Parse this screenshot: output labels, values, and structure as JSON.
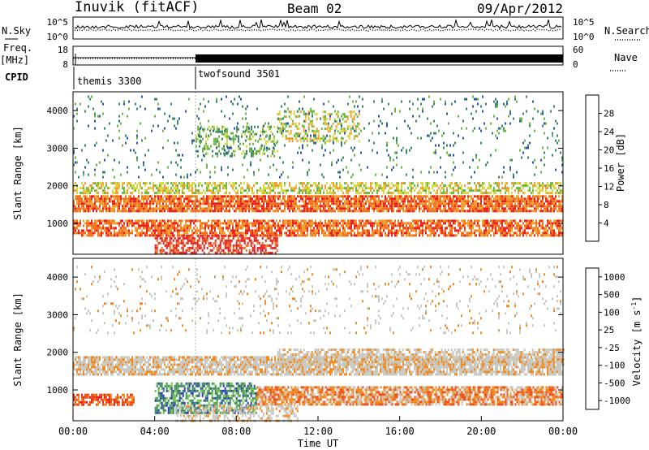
{
  "header": {
    "station": "Inuvik (fitACF)",
    "beam": "Beam 02",
    "date": "09/Apr/2012"
  },
  "side_labels": {
    "nsky": "N.Sky",
    "nsearch": "N.Search",
    "freq_line1": "Freq.",
    "freq_line2": "[MHz]",
    "nave": "Nave",
    "cpid": "CPID"
  },
  "cpid_programs": [
    {
      "name": "themis 3300",
      "start_hour": 0
    },
    {
      "name": "twofsound 3501",
      "start_hour": 6
    }
  ],
  "colors": {
    "power": [
      "#1e1ee6",
      "#2a5aa8",
      "#3a8a6a",
      "#6ab845",
      "#d8d840",
      "#f0a030",
      "#f07020",
      "#e82020"
    ],
    "velocity": [
      "#e82020",
      "#f05018",
      "#f08a20",
      "#c8c8c0",
      "#c8c8c0",
      "#6ac040",
      "#3a8a5a",
      "#2a40b0"
    ]
  },
  "chart_data": [
    {
      "type": "line",
      "panel": "N.Sky / N.Search",
      "ylabels": [
        "10^5",
        "10^0"
      ],
      "y2labels": [
        "10^5",
        "10^0"
      ],
      "x_range": [
        0,
        24
      ]
    },
    {
      "type": "line",
      "panel": "Freq / Nave",
      "ylim": [
        8,
        18
      ],
      "yticks": [
        "18",
        "8"
      ],
      "y2lim": [
        0,
        60
      ],
      "y2ticks": [
        "60",
        "0"
      ],
      "series": [
        {
          "name": "Freq.",
          "x": [
            0,
            6,
            6,
            24
          ],
          "y": [
            12,
            12,
            12,
            12
          ]
        }
      ]
    },
    {
      "type": "heatmap",
      "panel": "Power",
      "ylabel": "Slant Range [km]",
      "xlim": [
        0,
        24
      ],
      "ylim": [
        180,
        4500
      ],
      "yticks": [
        1000,
        2000,
        3000,
        4000
      ],
      "colorbar": {
        "label": "Power [dB]",
        "ticks": [
          4,
          8,
          12,
          16,
          20,
          24,
          28
        ]
      },
      "bands": [
        {
          "x": [
            0,
            24
          ],
          "range": [
            1300,
            1750
          ],
          "level": 6,
          "density": 0.85
        },
        {
          "x": [
            0,
            24
          ],
          "range": [
            650,
            1100
          ],
          "level": 6,
          "density": 0.75
        },
        {
          "x": [
            4,
            10
          ],
          "range": [
            200,
            700
          ],
          "level": 7,
          "density": 0.6
        },
        {
          "x": [
            0,
            24
          ],
          "range": [
            1800,
            2100
          ],
          "level": 4,
          "density": 0.55
        },
        {
          "x": [
            6,
            10
          ],
          "range": [
            2800,
            3600
          ],
          "level": 3,
          "density": 0.35
        },
        {
          "x": [
            10,
            14
          ],
          "range": [
            3200,
            4000
          ],
          "level": 4,
          "density": 0.35
        },
        {
          "x": [
            0,
            24
          ],
          "range": [
            2200,
            4400
          ],
          "level": 2,
          "density": 0.06
        }
      ]
    },
    {
      "type": "heatmap",
      "panel": "Velocity",
      "ylabel": "Slant Range [km]",
      "xlabel": "Time UT",
      "xlim": [
        0,
        24
      ],
      "ylim": [
        180,
        4500
      ],
      "yticks": [
        1000,
        2000,
        3000,
        4000
      ],
      "xticks": [
        "00:00",
        "04:00",
        "08:00",
        "12:00",
        "16:00",
        "20:00",
        "00:00"
      ],
      "colorbar": {
        "label": "Velocity [m s-1]",
        "ticks": [
          1000,
          500,
          100,
          25,
          -25,
          -100,
          -500,
          -1000
        ]
      },
      "bands": [
        {
          "x": [
            0,
            24
          ],
          "range": [
            1400,
            1900
          ],
          "level": 3,
          "density": 0.8
        },
        {
          "x": [
            10,
            24
          ],
          "range": [
            1700,
            2100
          ],
          "level": 3,
          "density": 0.6
        },
        {
          "x": [
            0,
            3
          ],
          "range": [
            600,
            900
          ],
          "level": 1,
          "density": 0.7
        },
        {
          "x": [
            4,
            9
          ],
          "range": [
            400,
            1200
          ],
          "level": 6,
          "density": 0.65
        },
        {
          "x": [
            9,
            24
          ],
          "range": [
            600,
            1100
          ],
          "level": 2,
          "density": 0.8
        },
        {
          "x": [
            5,
            11
          ],
          "range": [
            200,
            600
          ],
          "level": 3,
          "density": 0.45
        },
        {
          "x": [
            0,
            24
          ],
          "range": [
            2500,
            4300
          ],
          "level": 3,
          "density": 0.07
        }
      ]
    }
  ]
}
